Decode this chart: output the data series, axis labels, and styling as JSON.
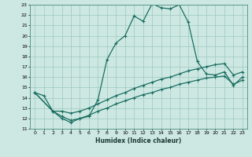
{
  "xlabel": "Humidex (Indice chaleur)",
  "xlim": [
    -0.5,
    23.5
  ],
  "ylim": [
    11,
    23
  ],
  "xticks": [
    0,
    1,
    2,
    3,
    4,
    5,
    6,
    7,
    8,
    9,
    10,
    11,
    12,
    13,
    14,
    15,
    16,
    17,
    18,
    19,
    20,
    21,
    22,
    23
  ],
  "yticks": [
    11,
    12,
    13,
    14,
    15,
    16,
    17,
    18,
    19,
    20,
    21,
    22,
    23
  ],
  "background_color": "#cde8e2",
  "grid_color": "#9dc8c0",
  "line_color": "#1a6e62",
  "line1_x": [
    0,
    1,
    2,
    3,
    4,
    5,
    6,
    7,
    8,
    9,
    10,
    11,
    12,
    13,
    14,
    15,
    16,
    17,
    18,
    19,
    20,
    21,
    22,
    23
  ],
  "line1_y": [
    14.5,
    14.2,
    12.7,
    12.0,
    11.6,
    12.0,
    12.2,
    13.8,
    17.7,
    19.3,
    20.0,
    21.9,
    21.4,
    23.1,
    22.7,
    22.6,
    23.0,
    21.3,
    17.5,
    16.3,
    16.2,
    16.5,
    15.2,
    16.0
  ],
  "line2_x": [
    0,
    2,
    3,
    4,
    5,
    6,
    7,
    8,
    9,
    10,
    11,
    12,
    13,
    14,
    15,
    16,
    17,
    18,
    19,
    20,
    21,
    22,
    23
  ],
  "line2_y": [
    14.5,
    12.7,
    12.7,
    12.5,
    12.7,
    13.0,
    13.4,
    13.8,
    14.2,
    14.5,
    14.9,
    15.2,
    15.5,
    15.8,
    16.0,
    16.3,
    16.6,
    16.8,
    17.0,
    17.2,
    17.3,
    16.2,
    16.5
  ],
  "line3_x": [
    0,
    2,
    3,
    4,
    5,
    6,
    7,
    8,
    9,
    10,
    11,
    12,
    13,
    14,
    15,
    16,
    17,
    18,
    19,
    20,
    21,
    22,
    23
  ],
  "line3_y": [
    14.5,
    12.7,
    12.2,
    11.8,
    12.0,
    12.3,
    12.7,
    13.0,
    13.4,
    13.7,
    14.0,
    14.3,
    14.5,
    14.8,
    15.0,
    15.3,
    15.5,
    15.7,
    15.9,
    16.0,
    16.1,
    15.3,
    15.7
  ]
}
